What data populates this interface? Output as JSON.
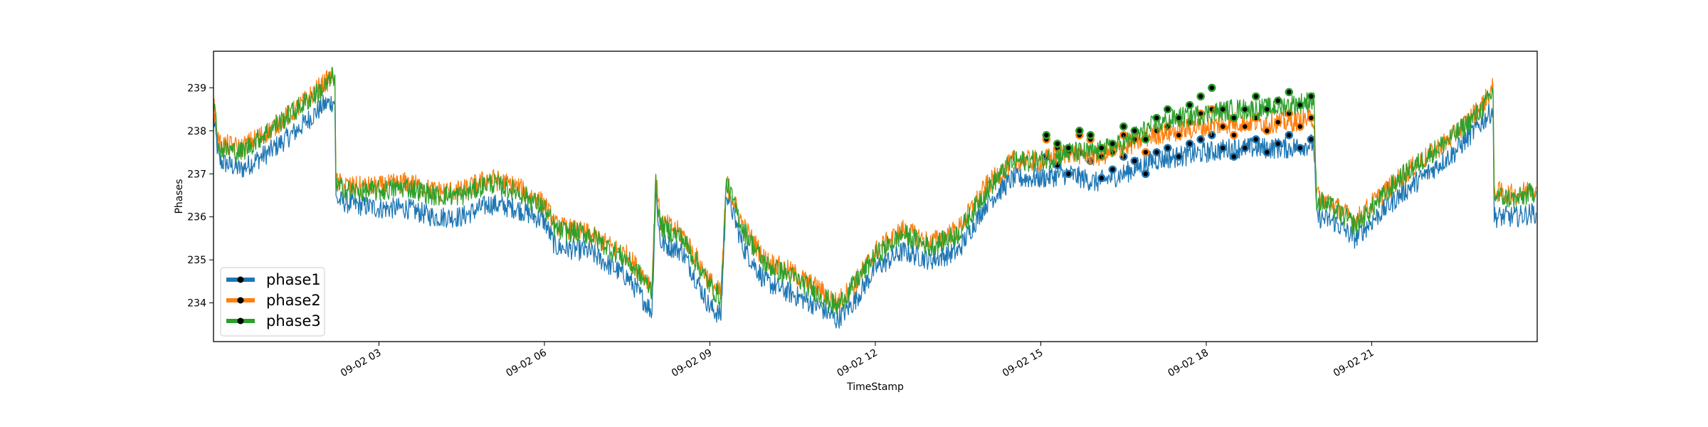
{
  "chart_data": {
    "type": "line",
    "xlabel": "TimeStamp",
    "ylabel": "Phases",
    "x_domain": [
      "09-02 00:00",
      "09-02 23:59"
    ],
    "xlim_hours": [
      0,
      24
    ],
    "ylim": [
      233.1,
      239.85
    ],
    "xticks": [
      {
        "hour": 3,
        "label": "09-02 03"
      },
      {
        "hour": 6,
        "label": "09-02 06"
      },
      {
        "hour": 9,
        "label": "09-02 09"
      },
      {
        "hour": 12,
        "label": "09-02 12"
      },
      {
        "hour": 15,
        "label": "09-02 15"
      },
      {
        "hour": 18,
        "label": "09-02 18"
      },
      {
        "hour": 21,
        "label": "09-02 21"
      }
    ],
    "yticks": [
      {
        "value": 234,
        "label": "234"
      },
      {
        "value": 235,
        "label": "235"
      },
      {
        "value": 236,
        "label": "236"
      },
      {
        "value": 237,
        "label": "237"
      },
      {
        "value": 238,
        "label": "238"
      },
      {
        "value": 239,
        "label": "239"
      }
    ],
    "grid": false,
    "legend": "lower-left",
    "series": [
      {
        "name": "phase1",
        "color": "#1f77b4",
        "x_hours": [
          0,
          0.1,
          0.5,
          1.0,
          1.5,
          2.0,
          2.2,
          2.22,
          2.5,
          3.0,
          3.5,
          4.0,
          4.5,
          5.0,
          5.5,
          6.0,
          6.2,
          6.8,
          7.5,
          7.95,
          8.02,
          8.1,
          8.5,
          9.0,
          9.2,
          9.3,
          9.6,
          10.0,
          10.5,
          11.0,
          11.3,
          11.6,
          12.0,
          12.5,
          13.0,
          13.5,
          14.0,
          14.5,
          15.0,
          15.5,
          16.0,
          16.5,
          17.0,
          17.5,
          18.0,
          18.5,
          19.0,
          19.5,
          19.95,
          20.0,
          20.3,
          20.7,
          21.0,
          21.5,
          22.0,
          22.5,
          23.0,
          23.2,
          23.22,
          23.6,
          23.98
        ],
        "values": [
          238.3,
          237.3,
          237.1,
          237.5,
          238.0,
          238.6,
          238.7,
          236.4,
          236.3,
          236.2,
          236.2,
          236.0,
          236.0,
          236.3,
          236.2,
          235.9,
          235.3,
          235.2,
          234.6,
          233.8,
          236.6,
          235.4,
          235.2,
          233.9,
          233.7,
          236.6,
          235.3,
          234.5,
          234.2,
          233.9,
          233.6,
          234.0,
          234.8,
          235.2,
          235.0,
          235.2,
          236.3,
          236.9,
          236.9,
          237.0,
          236.8,
          237.0,
          237.3,
          237.4,
          237.5,
          237.6,
          237.6,
          237.6,
          237.7,
          236.0,
          235.9,
          235.5,
          235.9,
          236.5,
          237.0,
          237.5,
          238.2,
          238.5,
          236.0,
          236.0,
          236.1
        ],
        "markers_hours": [
          15.1,
          15.3,
          15.5,
          15.7,
          15.9,
          16.1,
          16.3,
          16.5,
          16.7,
          16.9,
          17.1,
          17.3,
          17.5,
          17.7,
          17.9,
          18.1,
          18.3,
          18.5,
          18.7,
          18.9,
          19.1,
          19.3,
          19.5,
          19.7,
          19.9
        ],
        "markers": [
          237.4,
          237.2,
          237.0,
          237.5,
          237.3,
          236.9,
          237.1,
          237.4,
          237.3,
          237.0,
          237.5,
          237.6,
          237.4,
          237.7,
          237.8,
          237.9,
          237.6,
          237.4,
          237.6,
          237.8,
          237.5,
          237.7,
          237.9,
          237.6,
          237.8
        ]
      },
      {
        "name": "phase2",
        "color": "#ff7f0e",
        "x_hours": [
          0,
          0.1,
          0.5,
          1.0,
          1.5,
          2.0,
          2.2,
          2.22,
          2.5,
          3.0,
          3.5,
          4.0,
          4.5,
          5.0,
          5.5,
          6.0,
          6.2,
          6.8,
          7.5,
          7.95,
          8.02,
          8.1,
          8.5,
          9.0,
          9.2,
          9.3,
          9.6,
          10.0,
          10.5,
          11.0,
          11.3,
          11.6,
          12.0,
          12.5,
          13.0,
          13.5,
          14.0,
          14.5,
          15.0,
          15.5,
          16.0,
          16.5,
          17.0,
          17.5,
          18.0,
          18.5,
          19.0,
          19.5,
          19.95,
          20.0,
          20.3,
          20.7,
          21.0,
          21.5,
          22.0,
          22.5,
          23.0,
          23.2,
          23.22,
          23.6,
          23.98
        ],
        "values": [
          238.6,
          237.7,
          237.6,
          238.0,
          238.5,
          239.1,
          239.3,
          236.8,
          236.7,
          236.7,
          236.8,
          236.6,
          236.6,
          236.9,
          236.7,
          236.3,
          235.8,
          235.6,
          235.1,
          234.4,
          236.9,
          235.9,
          235.6,
          234.5,
          234.2,
          236.8,
          235.8,
          235.0,
          234.7,
          234.3,
          234.0,
          234.4,
          235.2,
          235.7,
          235.4,
          235.7,
          236.7,
          237.3,
          237.3,
          237.5,
          237.4,
          237.6,
          237.9,
          238.0,
          238.1,
          238.2,
          238.2,
          238.2,
          238.3,
          236.5,
          236.3,
          235.9,
          236.3,
          236.9,
          237.4,
          237.9,
          238.6,
          239.0,
          236.6,
          236.5,
          236.7
        ],
        "markers_hours": [
          15.1,
          15.3,
          15.5,
          15.7,
          15.9,
          16.1,
          16.3,
          16.5,
          16.7,
          16.9,
          17.1,
          17.3,
          17.5,
          17.7,
          17.9,
          18.1,
          18.3,
          18.5,
          18.7,
          18.9,
          19.1,
          19.3,
          19.5,
          19.7,
          19.9
        ],
        "markers": [
          237.8,
          237.6,
          237.5,
          237.9,
          237.8,
          237.4,
          237.5,
          237.9,
          237.8,
          237.5,
          238.0,
          238.1,
          237.9,
          238.2,
          238.4,
          238.5,
          238.1,
          237.9,
          238.1,
          238.3,
          238.0,
          238.2,
          238.4,
          238.1,
          238.3
        ]
      },
      {
        "name": "phase3",
        "color": "#2ca02c",
        "x_hours": [
          0,
          0.1,
          0.5,
          1.0,
          1.5,
          2.0,
          2.2,
          2.22,
          2.5,
          3.0,
          3.5,
          4.0,
          4.5,
          5.0,
          5.5,
          6.0,
          6.2,
          6.8,
          7.5,
          7.95,
          8.02,
          8.1,
          8.5,
          9.0,
          9.2,
          9.3,
          9.6,
          10.0,
          10.5,
          11.0,
          11.3,
          11.6,
          12.0,
          12.5,
          13.0,
          13.5,
          14.0,
          14.5,
          15.0,
          15.5,
          16.0,
          16.5,
          17.0,
          17.5,
          18.0,
          18.5,
          19.0,
          19.5,
          19.95,
          20.0,
          20.3,
          20.7,
          21.0,
          21.5,
          22.0,
          22.5,
          23.0,
          23.2,
          23.22,
          23.6,
          23.98
        ],
        "values": [
          238.7,
          237.6,
          237.5,
          238.0,
          238.5,
          239.0,
          239.3,
          236.7,
          236.6,
          236.6,
          236.7,
          236.5,
          236.5,
          236.8,
          236.6,
          236.2,
          235.7,
          235.6,
          235.0,
          234.3,
          236.8,
          235.8,
          235.5,
          234.4,
          234.1,
          236.8,
          235.7,
          234.9,
          234.6,
          234.2,
          233.9,
          234.4,
          235.1,
          235.6,
          235.3,
          235.6,
          236.6,
          237.3,
          237.3,
          237.5,
          237.5,
          237.7,
          238.1,
          238.3,
          238.4,
          238.5,
          238.5,
          238.6,
          238.7,
          236.4,
          236.2,
          235.8,
          236.2,
          236.9,
          237.4,
          237.9,
          238.5,
          238.9,
          236.5,
          236.4,
          236.6
        ],
        "markers_hours": [
          15.1,
          15.3,
          15.5,
          15.7,
          15.9,
          16.1,
          16.3,
          16.5,
          16.7,
          16.9,
          17.1,
          17.3,
          17.5,
          17.7,
          17.9,
          18.1,
          18.3,
          18.5,
          18.7,
          18.9,
          19.1,
          19.3,
          19.5,
          19.7,
          19.9
        ],
        "markers": [
          237.9,
          237.7,
          237.6,
          238.0,
          237.9,
          237.6,
          237.7,
          238.1,
          238.0,
          237.8,
          238.3,
          238.5,
          238.3,
          238.6,
          238.8,
          239.0,
          238.5,
          238.3,
          238.5,
          238.8,
          238.5,
          238.7,
          238.9,
          238.6,
          238.8
        ]
      }
    ]
  }
}
